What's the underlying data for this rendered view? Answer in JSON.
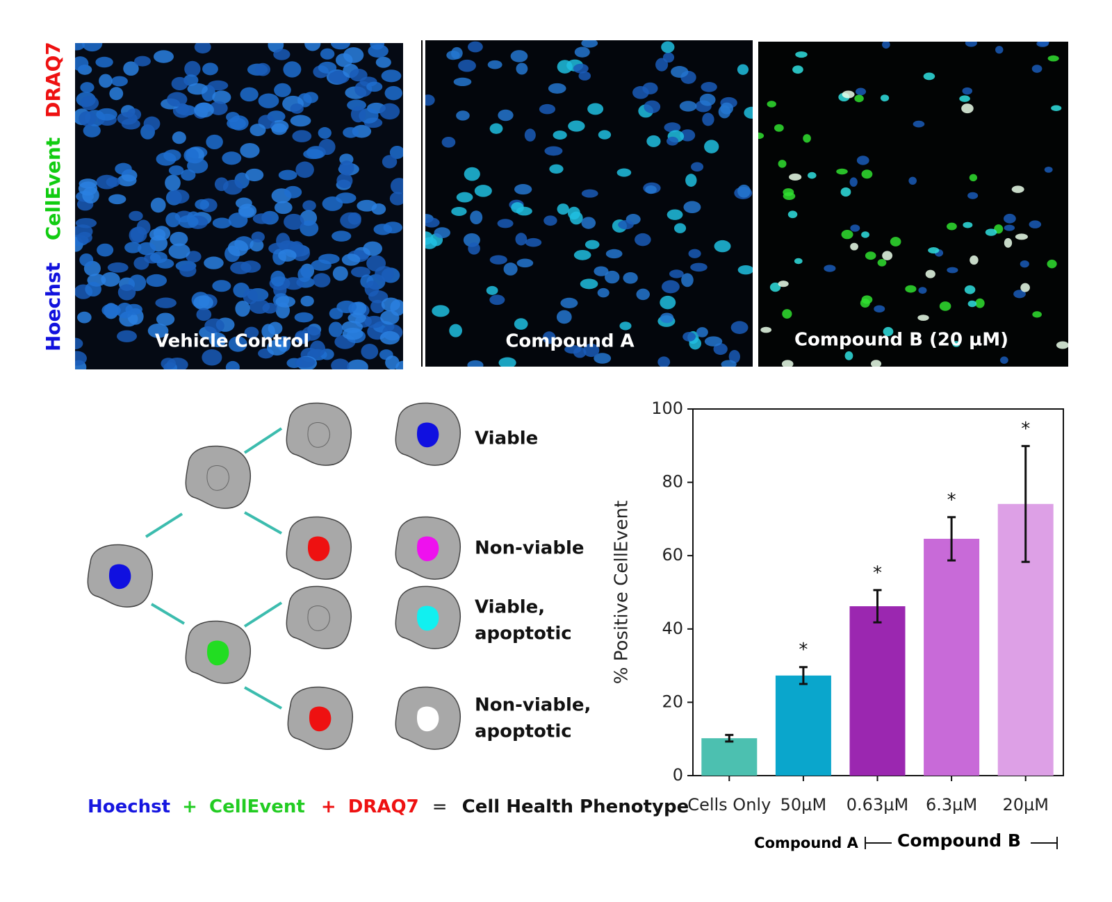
{
  "panels": {
    "channel_labels": [
      "DRAQ7",
      "CellEvent",
      "Hoechst"
    ],
    "images": [
      "Vehicle Control",
      "Compound A",
      "Compound B (20 µM)"
    ]
  },
  "diagram": {
    "phenotypes": [
      [
        "Viable"
      ],
      [
        "Non-viable"
      ],
      [
        "Viable,",
        "apoptotic"
      ],
      [
        "Non-viable,",
        "apoptotic"
      ]
    ],
    "equation": [
      "Hoechst",
      "+",
      "CellEvent",
      "+",
      "DRAQ7",
      "=",
      "Cell Health Phenotype"
    ]
  },
  "chart_data": {
    "type": "bar",
    "y_label": "% Positive CellEvent",
    "categories": [
      "Cells Only",
      "50µM",
      "0.63µM",
      "6.3µM",
      "20µM"
    ],
    "values": [
      10.2,
      27.3,
      46.2,
      64.6,
      74.1
    ],
    "errors": [
      0.9,
      2.3,
      4.4,
      5.9,
      15.8
    ],
    "colors": [
      "#4cc0b0",
      "#0aa6cc",
      "#9b27b0",
      "#c86ad8",
      "#dda0e6"
    ],
    "significance": [
      null,
      "*",
      "*",
      "*",
      "*"
    ],
    "groups": [
      "Compound A",
      "Compound B"
    ],
    "ylim": [
      0,
      100
    ],
    "yticks": [
      0,
      20,
      40,
      60,
      80,
      100
    ]
  }
}
